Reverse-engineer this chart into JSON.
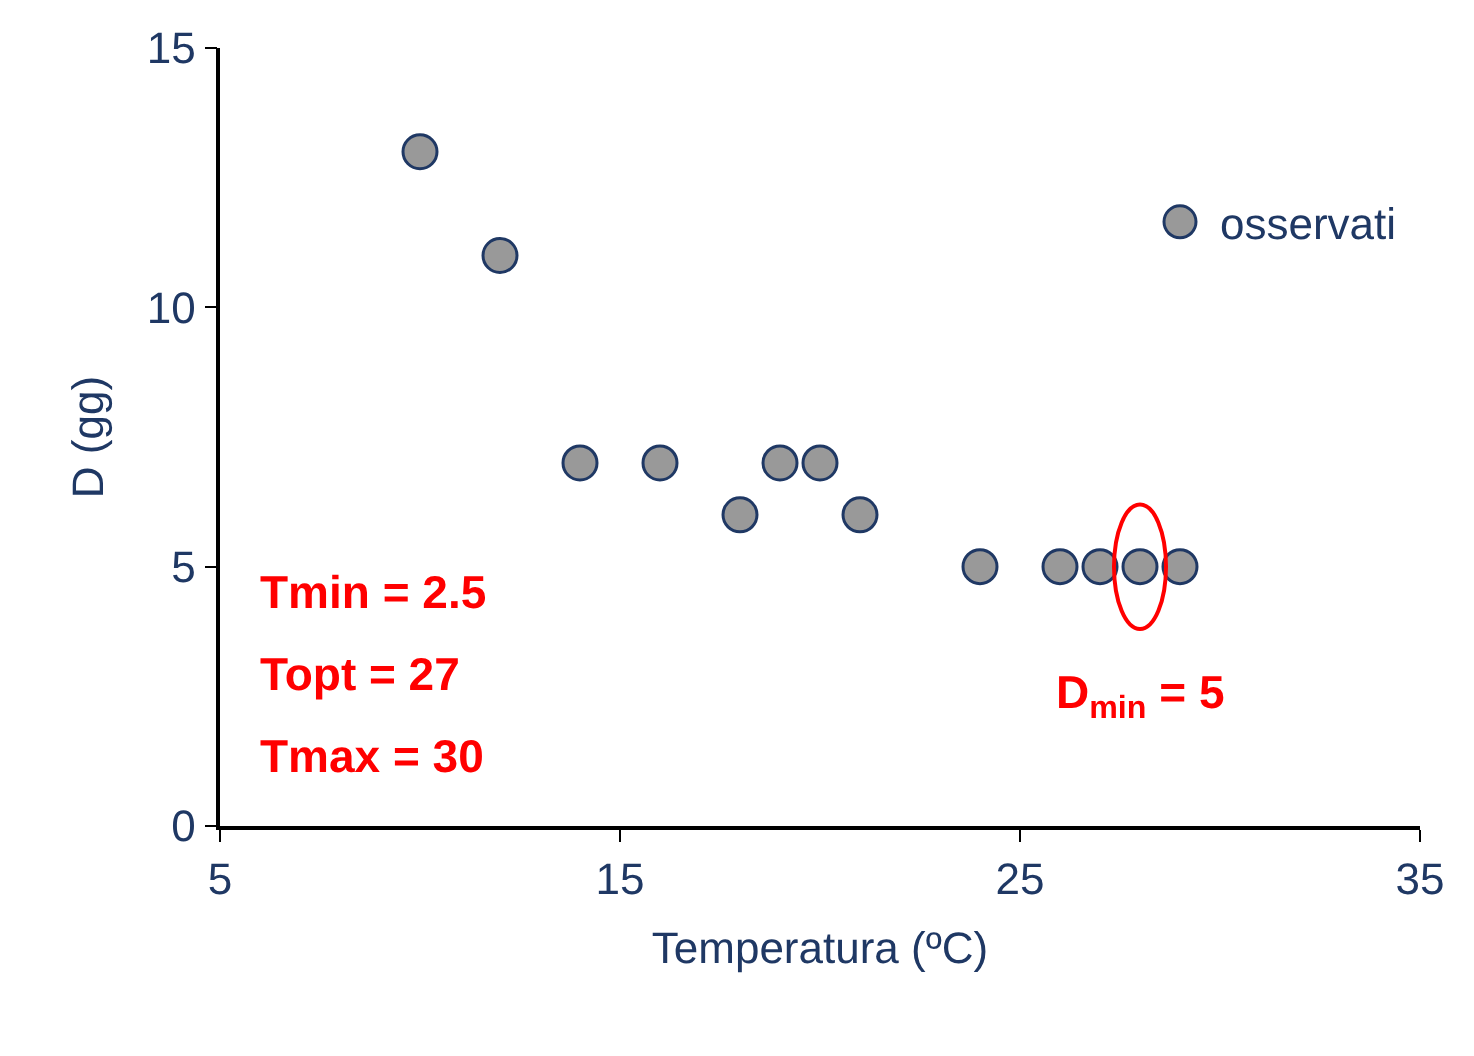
{
  "chart_data": {
    "type": "scatter",
    "xlabel": "Temperatura (ºC)",
    "ylabel": "D (gg)",
    "series": [
      {
        "name": "osservati",
        "color": "#999999",
        "x": [
          10,
          12,
          14,
          16,
          18,
          19,
          20,
          21,
          24,
          26,
          27,
          28,
          29
        ],
        "values": [
          13,
          11,
          7,
          7,
          6,
          7,
          7,
          6,
          5,
          5,
          5,
          5,
          5
        ]
      }
    ],
    "xlim": [
      5,
      35
    ],
    "xticks": [
      5,
      15,
      25,
      35
    ],
    "ylim": [
      0,
      15
    ],
    "yticks": [
      0,
      5,
      10,
      15
    ],
    "legend": "top right",
    "marker": "circle",
    "annotations": [
      "Tmin = 2.5",
      "Topt = 27",
      "Tmax = 30",
      {
        "text": "D$_{min}$ = 5",
        "x": 28,
        "y": 5
      }
    ]
  }
}
